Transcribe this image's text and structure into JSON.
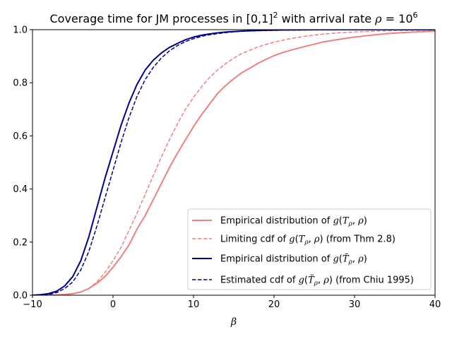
{
  "chart_data": {
    "type": "line",
    "title": {
      "prefix": "Coverage time for JM processes in ",
      "domain": "[0,1]",
      "domain_exp": "2",
      "middle": " with arrival rate ",
      "rate_symbol": "ρ",
      "rate_eq": " = 10",
      "rate_exp": "6"
    },
    "xlabel": "β",
    "ylabel": "",
    "xlim": [
      -10,
      40
    ],
    "ylim": [
      0,
      1
    ],
    "xticks": [
      -10,
      0,
      10,
      20,
      30,
      40
    ],
    "yticks": [
      0.0,
      0.2,
      0.4,
      0.6,
      0.8,
      1.0
    ],
    "xtick_labels": [
      "−10",
      "0",
      "10",
      "20",
      "30",
      "40"
    ],
    "ytick_labels": [
      "0.0",
      "0.2",
      "0.4",
      "0.6",
      "0.8",
      "1.0"
    ],
    "grid": false,
    "legend_position": "lower-right",
    "series": [
      {
        "name": "Empirical distribution of g(T_ρ, ρ)",
        "legend": {
          "pre": "Empirical distribution of ",
          "fn": "g",
          "var": "T",
          "tilde": false,
          "post": ""
        },
        "color": "#f08080",
        "style": "solid",
        "width": 2,
        "points": [
          [
            -10,
            0
          ],
          [
            -7,
            0.001
          ],
          [
            -6,
            0.003
          ],
          [
            -5,
            0.006
          ],
          [
            -4,
            0.012
          ],
          [
            -3,
            0.025
          ],
          [
            -2,
            0.045
          ],
          [
            -1,
            0.07
          ],
          [
            0,
            0.105
          ],
          [
            1,
            0.145
          ],
          [
            2,
            0.19
          ],
          [
            3,
            0.25
          ],
          [
            4,
            0.3
          ],
          [
            5,
            0.36
          ],
          [
            6,
            0.42
          ],
          [
            7,
            0.48
          ],
          [
            8,
            0.535
          ],
          [
            9,
            0.585
          ],
          [
            10,
            0.635
          ],
          [
            11,
            0.68
          ],
          [
            12,
            0.72
          ],
          [
            13,
            0.76
          ],
          [
            14,
            0.79
          ],
          [
            15,
            0.815
          ],
          [
            16,
            0.838
          ],
          [
            17,
            0.855
          ],
          [
            18,
            0.873
          ],
          [
            19,
            0.888
          ],
          [
            20,
            0.902
          ],
          [
            21,
            0.913
          ],
          [
            22,
            0.922
          ],
          [
            24,
            0.938
          ],
          [
            26,
            0.953
          ],
          [
            28,
            0.963
          ],
          [
            30,
            0.972
          ],
          [
            32,
            0.979
          ],
          [
            34,
            0.985
          ],
          [
            36,
            0.989
          ],
          [
            38,
            0.992
          ],
          [
            40,
            0.994
          ]
        ]
      },
      {
        "name": "Limiting cdf of g(T_ρ, ρ) (from Thm 2.8)",
        "legend": {
          "pre": "Limiting cdf of ",
          "fn": "g",
          "var": "T",
          "tilde": false,
          "post": " (from Thm 2.8)"
        },
        "color": "#f08080",
        "style": "dashed",
        "width": 1.5,
        "points": [
          [
            -10,
            0
          ],
          [
            -6,
            0.002
          ],
          [
            -5,
            0.005
          ],
          [
            -4,
            0.012
          ],
          [
            -3,
            0.026
          ],
          [
            -2,
            0.05
          ],
          [
            -1,
            0.085
          ],
          [
            0,
            0.13
          ],
          [
            1,
            0.18
          ],
          [
            2,
            0.245
          ],
          [
            3,
            0.31
          ],
          [
            4,
            0.38
          ],
          [
            5,
            0.45
          ],
          [
            6,
            0.52
          ],
          [
            7,
            0.585
          ],
          [
            8,
            0.645
          ],
          [
            9,
            0.7
          ],
          [
            10,
            0.745
          ],
          [
            11,
            0.785
          ],
          [
            12,
            0.82
          ],
          [
            13,
            0.848
          ],
          [
            14,
            0.872
          ],
          [
            15,
            0.893
          ],
          [
            16,
            0.91
          ],
          [
            18,
            0.935
          ],
          [
            20,
            0.953
          ],
          [
            22,
            0.966
          ],
          [
            24,
            0.976
          ],
          [
            26,
            0.983
          ],
          [
            28,
            0.988
          ],
          [
            30,
            0.991
          ],
          [
            33,
            0.995
          ],
          [
            36,
            0.997
          ],
          [
            40,
            0.998
          ]
        ]
      },
      {
        "name": "Empirical distribution of g(T̃_ρ, ρ)",
        "legend": {
          "pre": "Empirical distribution of ",
          "fn": "g",
          "var": "T",
          "tilde": true,
          "post": ""
        },
        "color": "#00008b",
        "style": "solid",
        "width": 2,
        "points": [
          [
            -10,
            0
          ],
          [
            -9,
            0.002
          ],
          [
            -8,
            0.006
          ],
          [
            -7,
            0.015
          ],
          [
            -6,
            0.035
          ],
          [
            -5,
            0.07
          ],
          [
            -4,
            0.13
          ],
          [
            -3,
            0.22
          ],
          [
            -2,
            0.33
          ],
          [
            -1,
            0.44
          ],
          [
            0,
            0.54
          ],
          [
            1,
            0.64
          ],
          [
            2,
            0.725
          ],
          [
            3,
            0.795
          ],
          [
            4,
            0.848
          ],
          [
            5,
            0.885
          ],
          [
            6,
            0.912
          ],
          [
            7,
            0.933
          ],
          [
            8,
            0.948
          ],
          [
            9,
            0.962
          ],
          [
            10,
            0.972
          ],
          [
            11,
            0.979
          ],
          [
            12,
            0.984
          ],
          [
            13,
            0.988
          ],
          [
            14,
            0.991
          ],
          [
            16,
            0.995
          ],
          [
            18,
            0.997
          ],
          [
            21,
            0.999
          ],
          [
            25,
            1.0
          ],
          [
            40,
            1.0
          ]
        ]
      },
      {
        "name": "Estimated cdf of g(T̃_ρ, ρ) (from Chiu 1995)",
        "legend": {
          "pre": "Estimated cdf of ",
          "fn": "g",
          "var": "T",
          "tilde": true,
          "post": " (from Chiu 1995)"
        },
        "color": "#00008b",
        "style": "dashed",
        "width": 1.5,
        "points": [
          [
            -10,
            0
          ],
          [
            -8,
            0.003
          ],
          [
            -7,
            0.01
          ],
          [
            -6,
            0.025
          ],
          [
            -5,
            0.05
          ],
          [
            -4,
            0.095
          ],
          [
            -3,
            0.165
          ],
          [
            -2,
            0.26
          ],
          [
            -1,
            0.365
          ],
          [
            0,
            0.47
          ],
          [
            1,
            0.575
          ],
          [
            2,
            0.67
          ],
          [
            3,
            0.75
          ],
          [
            4,
            0.812
          ],
          [
            5,
            0.858
          ],
          [
            6,
            0.893
          ],
          [
            7,
            0.92
          ],
          [
            8,
            0.94
          ],
          [
            9,
            0.955
          ],
          [
            10,
            0.966
          ],
          [
            11,
            0.975
          ],
          [
            12,
            0.981
          ],
          [
            14,
            0.989
          ],
          [
            16,
            0.994
          ],
          [
            18,
            0.996
          ],
          [
            21,
            0.998
          ],
          [
            25,
            0.999
          ],
          [
            40,
            1.0
          ]
        ]
      }
    ]
  }
}
